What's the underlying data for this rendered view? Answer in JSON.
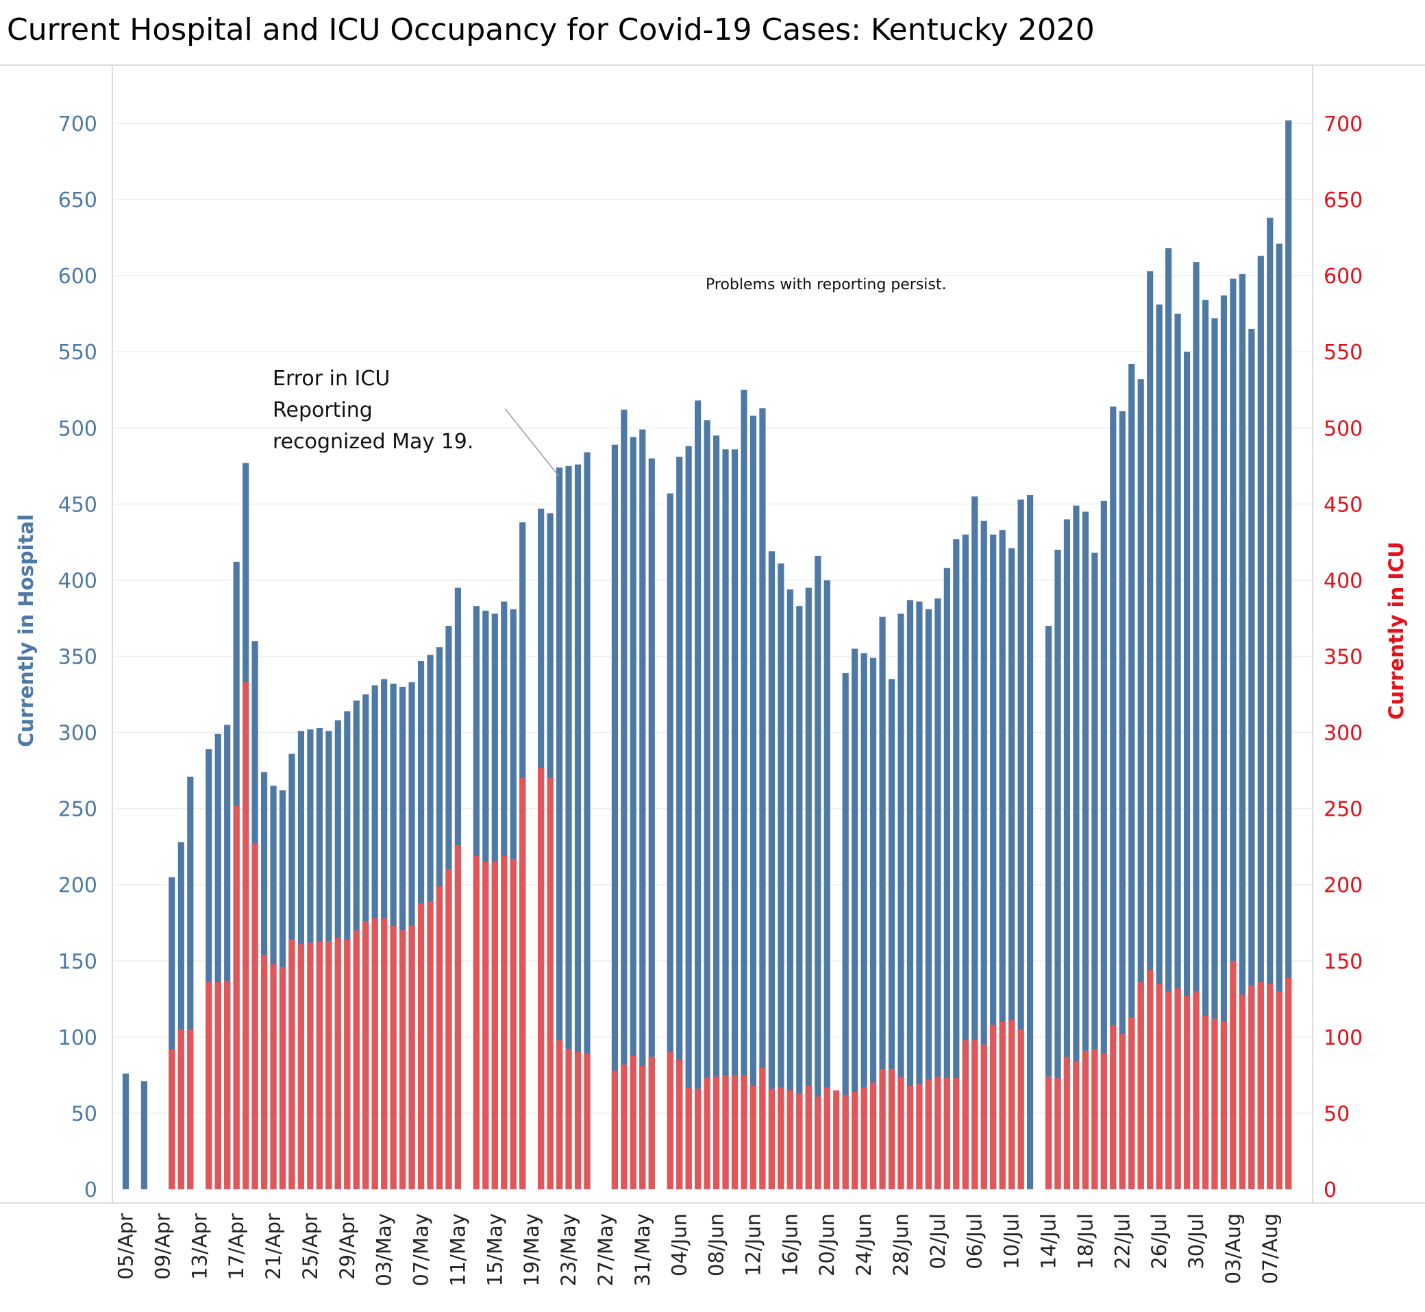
{
  "chart_data": {
    "type": "bar",
    "title": "Current Hospital and ICU Occupancy for Covid-19 Cases:  Kentucky 2020",
    "ylabel_left": "Currently in Hospital",
    "ylabel_right": "Currently in ICU",
    "ylim": [
      0,
      740
    ],
    "yticks": [
      0,
      50,
      100,
      150,
      200,
      250,
      300,
      350,
      400,
      450,
      500,
      550,
      600,
      650,
      700
    ],
    "grid": true,
    "start_date": "2020-04-05",
    "x_tick_labels": [
      "05/Apr",
      "09/Apr",
      "13/Apr",
      "17/Apr",
      "21/Apr",
      "25/Apr",
      "29/Apr",
      "03/May",
      "07/May",
      "11/May",
      "15/May",
      "19/May",
      "23/May",
      "27/May",
      "31/May",
      "04/Jun",
      "08/Jun",
      "12/Jun",
      "16/Jun",
      "20/Jun",
      "24/Jun",
      "28/Jun",
      "02/Jul",
      "06/Jul",
      "10/Jul",
      "14/Jul",
      "18/Jul",
      "22/Jul",
      "26/Jul",
      "30/Jul",
      "03/Aug",
      "07/Aug"
    ],
    "colors": {
      "hospital": "#4e79a7",
      "icu": "#e15759",
      "left_axis": "#4e79a7",
      "right_axis": "#e3111a"
    },
    "series": [
      {
        "name": "Currently in Hospital",
        "values": [
          76,
          null,
          71,
          null,
          null,
          205,
          228,
          271,
          null,
          289,
          299,
          305,
          412,
          477,
          360,
          274,
          265,
          262,
          286,
          301,
          302,
          303,
          301,
          308,
          314,
          321,
          325,
          331,
          335,
          332,
          330,
          333,
          347,
          351,
          356,
          370,
          395,
          null,
          383,
          380,
          378,
          386,
          381,
          438,
          null,
          447,
          444,
          474,
          475,
          476,
          484,
          null,
          null,
          489,
          512,
          494,
          499,
          480,
          null,
          457,
          481,
          488,
          518,
          505,
          495,
          486,
          486,
          525,
          508,
          513,
          419,
          411,
          394,
          383,
          395,
          416,
          400,
          null,
          339,
          355,
          352,
          349,
          376,
          335,
          378,
          387,
          386,
          381,
          388,
          408,
          427,
          430,
          455,
          439,
          430,
          433,
          421,
          453,
          456,
          null,
          370,
          420,
          440,
          449,
          445,
          418,
          452,
          514,
          511,
          542,
          532,
          603,
          581,
          618,
          575,
          550,
          609,
          584,
          572,
          587,
          598,
          601,
          565,
          613,
          638,
          621,
          702
        ]
      },
      {
        "name": "Currently in ICU",
        "values": [
          null,
          null,
          null,
          null,
          null,
          92,
          105,
          105,
          null,
          136,
          136,
          137,
          252,
          333,
          227,
          154,
          148,
          146,
          164,
          161,
          162,
          163,
          163,
          165,
          164,
          170,
          176,
          178,
          178,
          173,
          170,
          173,
          188,
          189,
          199,
          210,
          226,
          null,
          219,
          215,
          215,
          219,
          217,
          270,
          null,
          277,
          270,
          98,
          92,
          90,
          89,
          null,
          null,
          78,
          82,
          88,
          81,
          87,
          null,
          90,
          85,
          67,
          66,
          73,
          74,
          75,
          75,
          75,
          68,
          80,
          66,
          67,
          65,
          63,
          68,
          61,
          67,
          65,
          62,
          64,
          67,
          70,
          79,
          79,
          74,
          68,
          69,
          72,
          74,
          73,
          73,
          98,
          98,
          95,
          108,
          110,
          111,
          105,
          null,
          null,
          74,
          73,
          87,
          84,
          91,
          92,
          89,
          108,
          102,
          113,
          136,
          144,
          135,
          130,
          132,
          127,
          130,
          114,
          112,
          110,
          150,
          128,
          134,
          136,
          135,
          130,
          139
        ]
      }
    ],
    "annotations": {
      "icu_error_line1": "Error in ICU",
      "icu_error_line2": "Reporting",
      "icu_error_line3": "recognized May 19.",
      "reporting": "Problems with reporting persist."
    }
  }
}
